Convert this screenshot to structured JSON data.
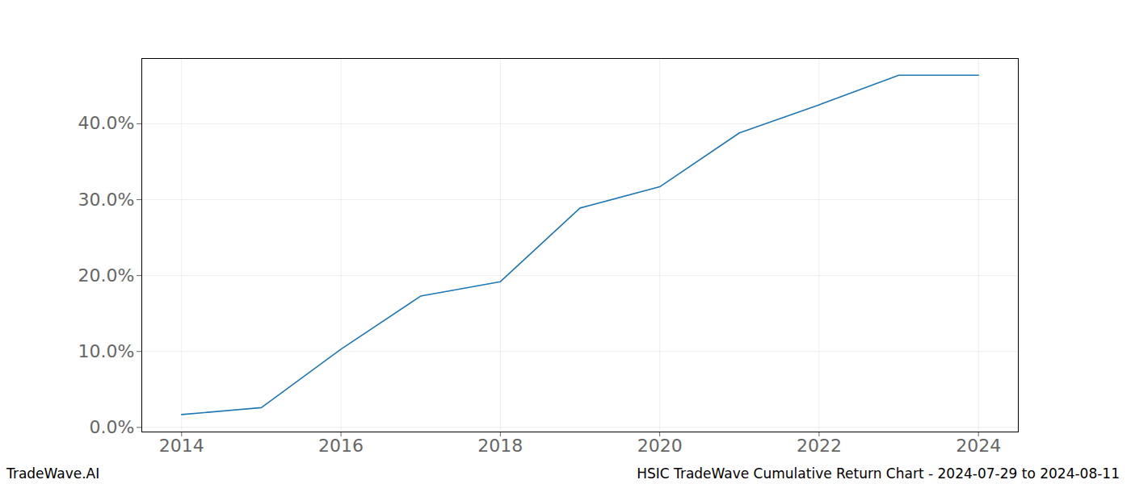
{
  "chart_data": {
    "type": "line",
    "x": [
      2014,
      2015,
      2016,
      2017,
      2018,
      2019,
      2020,
      2021,
      2022,
      2023,
      2024
    ],
    "values": [
      1.7,
      2.6,
      10.3,
      17.3,
      19.2,
      28.9,
      31.7,
      38.8,
      42.5,
      46.4,
      46.4
    ],
    "color": "#1f77b4",
    "xlim": [
      2013.5,
      2024.5
    ],
    "xticks": [
      2014,
      2016,
      2018,
      2020,
      2022,
      2024
    ],
    "ylim": [
      -0.6,
      48.6
    ],
    "yticks": [
      {
        "value": 0,
        "label": "0.0%"
      },
      {
        "value": 10,
        "label": "10.0%"
      },
      {
        "value": 20,
        "label": "20.0%"
      },
      {
        "value": 30,
        "label": "30.0%"
      },
      {
        "value": 40,
        "label": "40.0%"
      }
    ],
    "grid": true,
    "source": "TradeWave.AI",
    "caption": "HSIC TradeWave Cumulative Return Chart - 2024-07-29 to 2024-08-11"
  }
}
